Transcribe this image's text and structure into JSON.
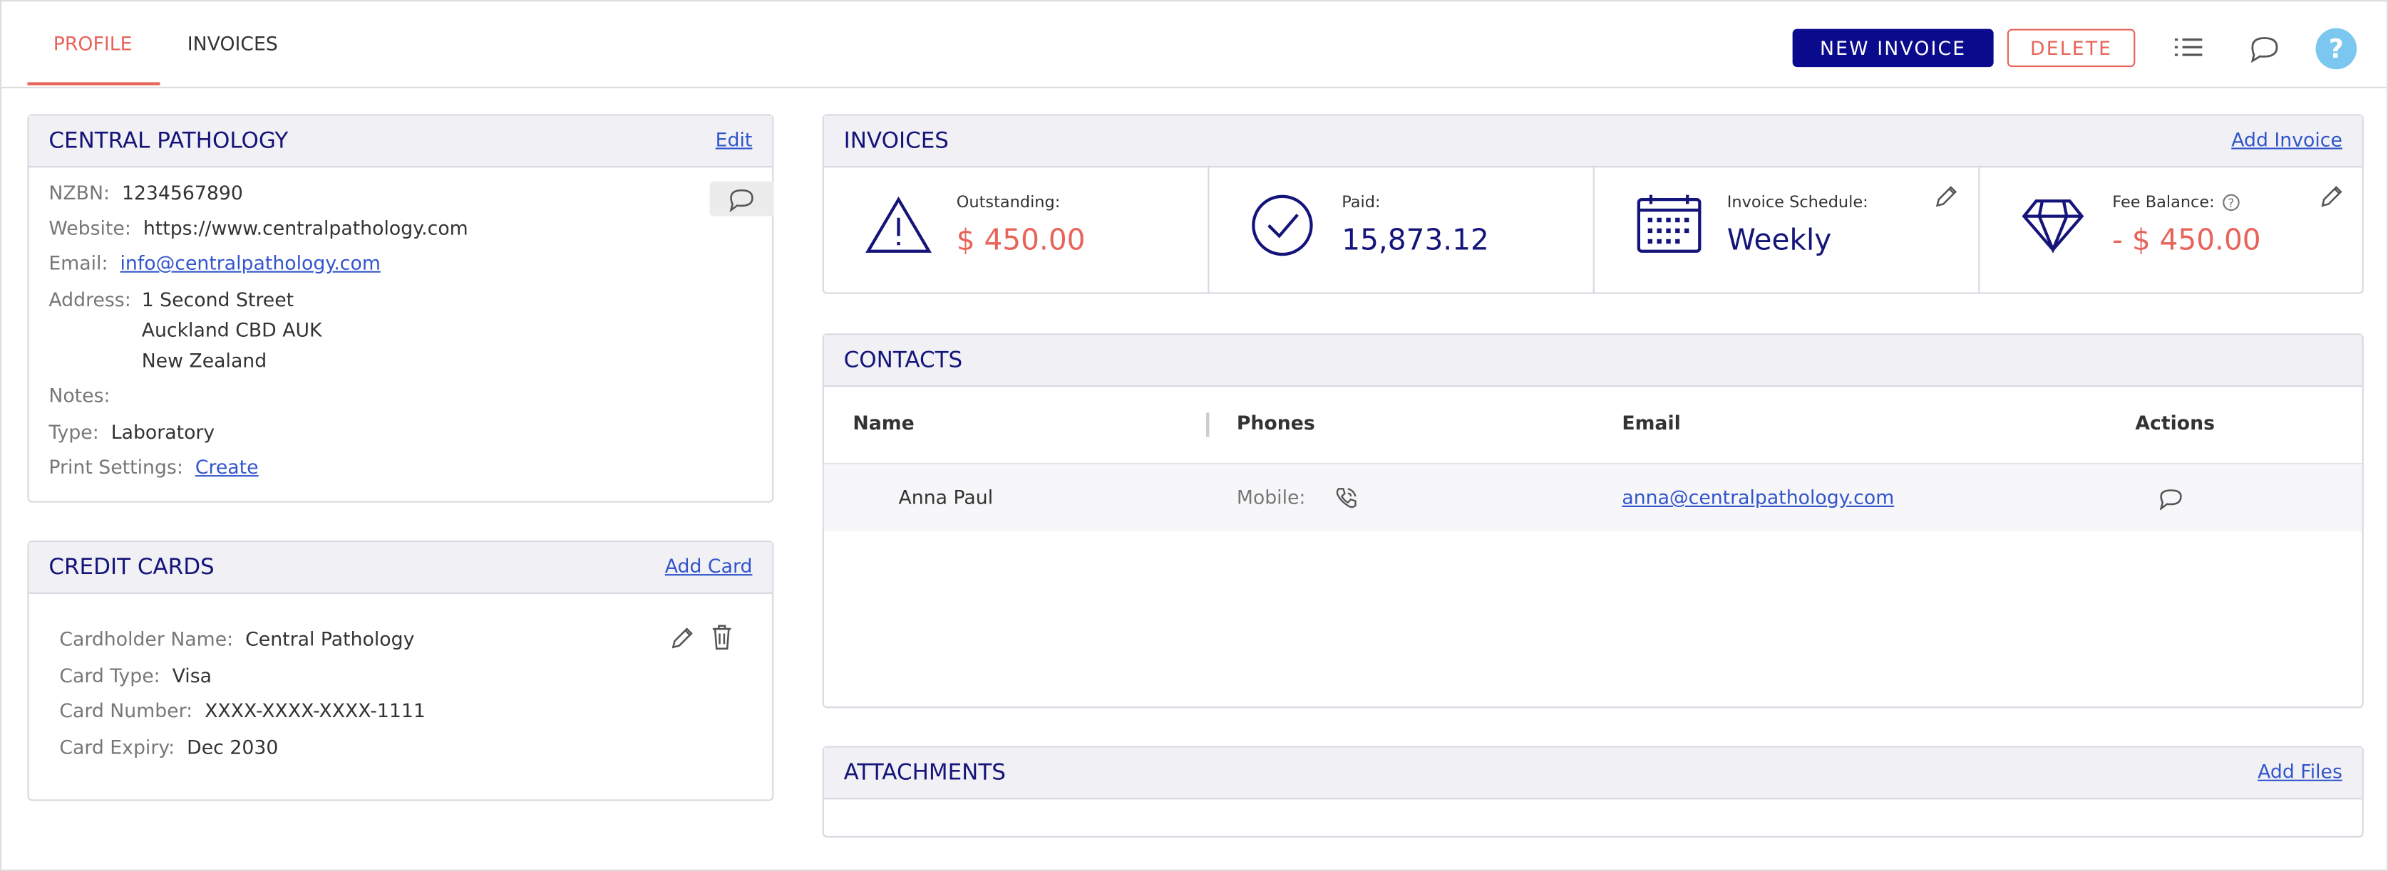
{
  "tabs": [
    "PROFILE",
    "INVOICES"
  ],
  "buttons": {
    "new_invoice": "NEW INVOICE",
    "delete": "DELETE"
  },
  "profile": {
    "title": "CENTRAL PATHOLOGY",
    "action": "Edit",
    "fields": [
      {
        "label": "NZBN:",
        "value": "1234567890"
      },
      {
        "label": "Website:",
        "value": "https://www.centralpathology.com"
      },
      {
        "label": "Email:",
        "value": "info@centralpathology.com"
      }
    ],
    "address": {
      "label": "Address:",
      "lines": [
        "1 Second Street",
        "Auckland CBD AUK",
        "New Zealand"
      ]
    },
    "notes": {
      "label": "Notes:"
    },
    "type": {
      "label": "Type:",
      "value": "Laboratory"
    },
    "print_settings": {
      "label": "Print Settings:",
      "value": "Create"
    }
  },
  "credit_cards": {
    "title": "CREDIT CARDS",
    "action": "Add Card",
    "fields": [
      {
        "label": "Cardholder Name:",
        "value": "Central Pathology"
      },
      {
        "label": "Card Type:",
        "value": "Visa"
      },
      {
        "label": "Card Number:",
        "value": "XXXX-XXXX-XXXX-1111"
      },
      {
        "label": "Card Expiry:",
        "value": "Dec 2030"
      }
    ]
  },
  "invoices": {
    "title": "INVOICES",
    "action": "Add Invoice",
    "stats": [
      {
        "label": "Outstanding:",
        "value": "$ 450.00"
      },
      {
        "label": "Paid:",
        "value": "15,873.12"
      },
      {
        "label": "Invoice Schedule:",
        "value": "Weekly"
      },
      {
        "label": "Fee Balance:",
        "value": "- $ 450.00"
      }
    ]
  },
  "contacts": {
    "title": "CONTACTS",
    "columns": [
      "Name",
      "Phones",
      "Email",
      "Actions"
    ],
    "rows": [
      {
        "name": "Anna Paul",
        "phone_label": "Mobile:",
        "email": "anna@centralpathology.com"
      }
    ]
  },
  "attachments": {
    "title": "ATTACHMENTS",
    "action": "Add Files"
  }
}
